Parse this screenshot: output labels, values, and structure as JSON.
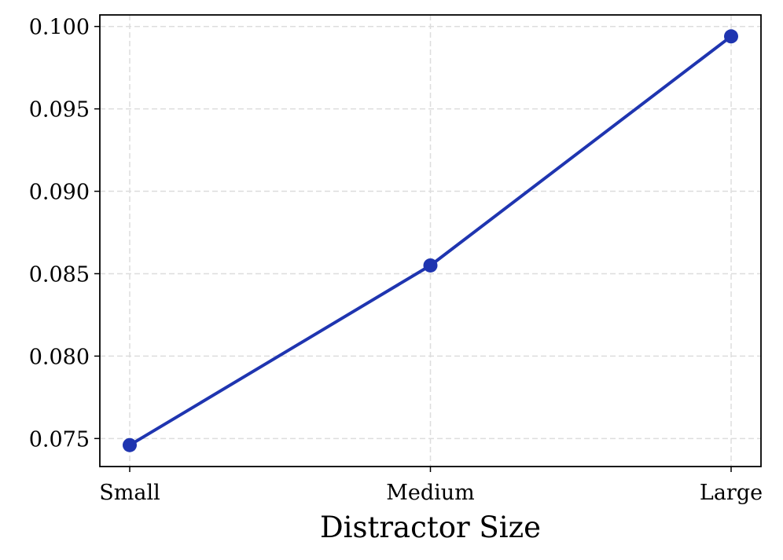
{
  "chart_data": {
    "type": "line",
    "categories": [
      "Small",
      "Medium",
      "Large"
    ],
    "series": [
      {
        "values": [
          0.0746,
          0.0855,
          0.0994
        ],
        "color": "#1f35b0",
        "marker": "circle"
      }
    ],
    "xlabel": "Distractor Size",
    "ylabel": "",
    "title": "",
    "ylim": [
      0.0733,
      0.1007
    ],
    "yticks": [
      0.075,
      0.08,
      0.085,
      0.09,
      0.095,
      0.1
    ],
    "ytick_labels": [
      "0.075",
      "0.080",
      "0.085",
      "0.090",
      "0.095",
      "0.100"
    ],
    "grid": true,
    "legend": "none"
  }
}
